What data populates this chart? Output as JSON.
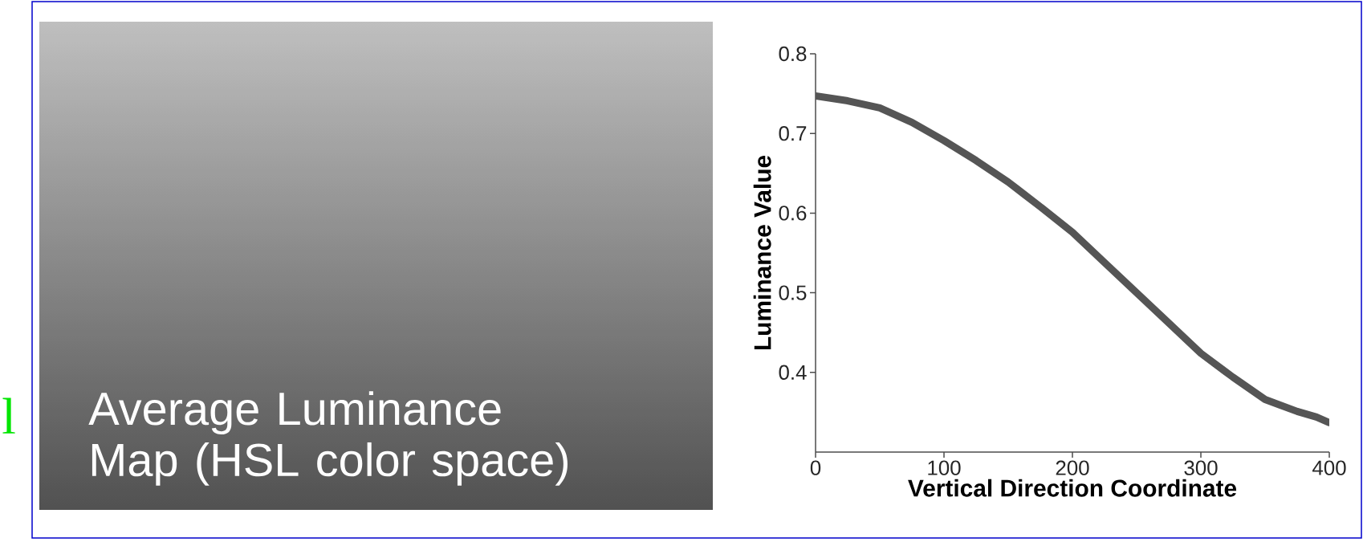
{
  "chart_data": {
    "type": "line",
    "xlabel": "Vertical Direction Coordinate",
    "ylabel": "Luminance Value",
    "annotations": [
      "Average Luminance Map  (HSL color space)",
      "l"
    ],
    "x": [
      0,
      25,
      50,
      75,
      100,
      125,
      150,
      175,
      200,
      225,
      250,
      275,
      300,
      325,
      350,
      375,
      390,
      400
    ],
    "series": [
      {
        "color": "#555555",
        "values": [
          0.747,
          0.741,
          0.732,
          0.714,
          0.691,
          0.666,
          0.639,
          0.608,
          0.576,
          0.538,
          0.5,
          0.462,
          0.424,
          0.394,
          0.366,
          0.351,
          0.344,
          0.337
        ]
      }
    ],
    "xlim": [
      0,
      400
    ],
    "ylim": [
      0.3,
      0.8
    ],
    "xticks": [
      0,
      100,
      200,
      300,
      400
    ],
    "yticks": [
      0.4,
      0.5,
      0.6,
      0.7,
      0.8
    ],
    "grid": false,
    "marker": "none",
    "line_style": "solid"
  }
}
